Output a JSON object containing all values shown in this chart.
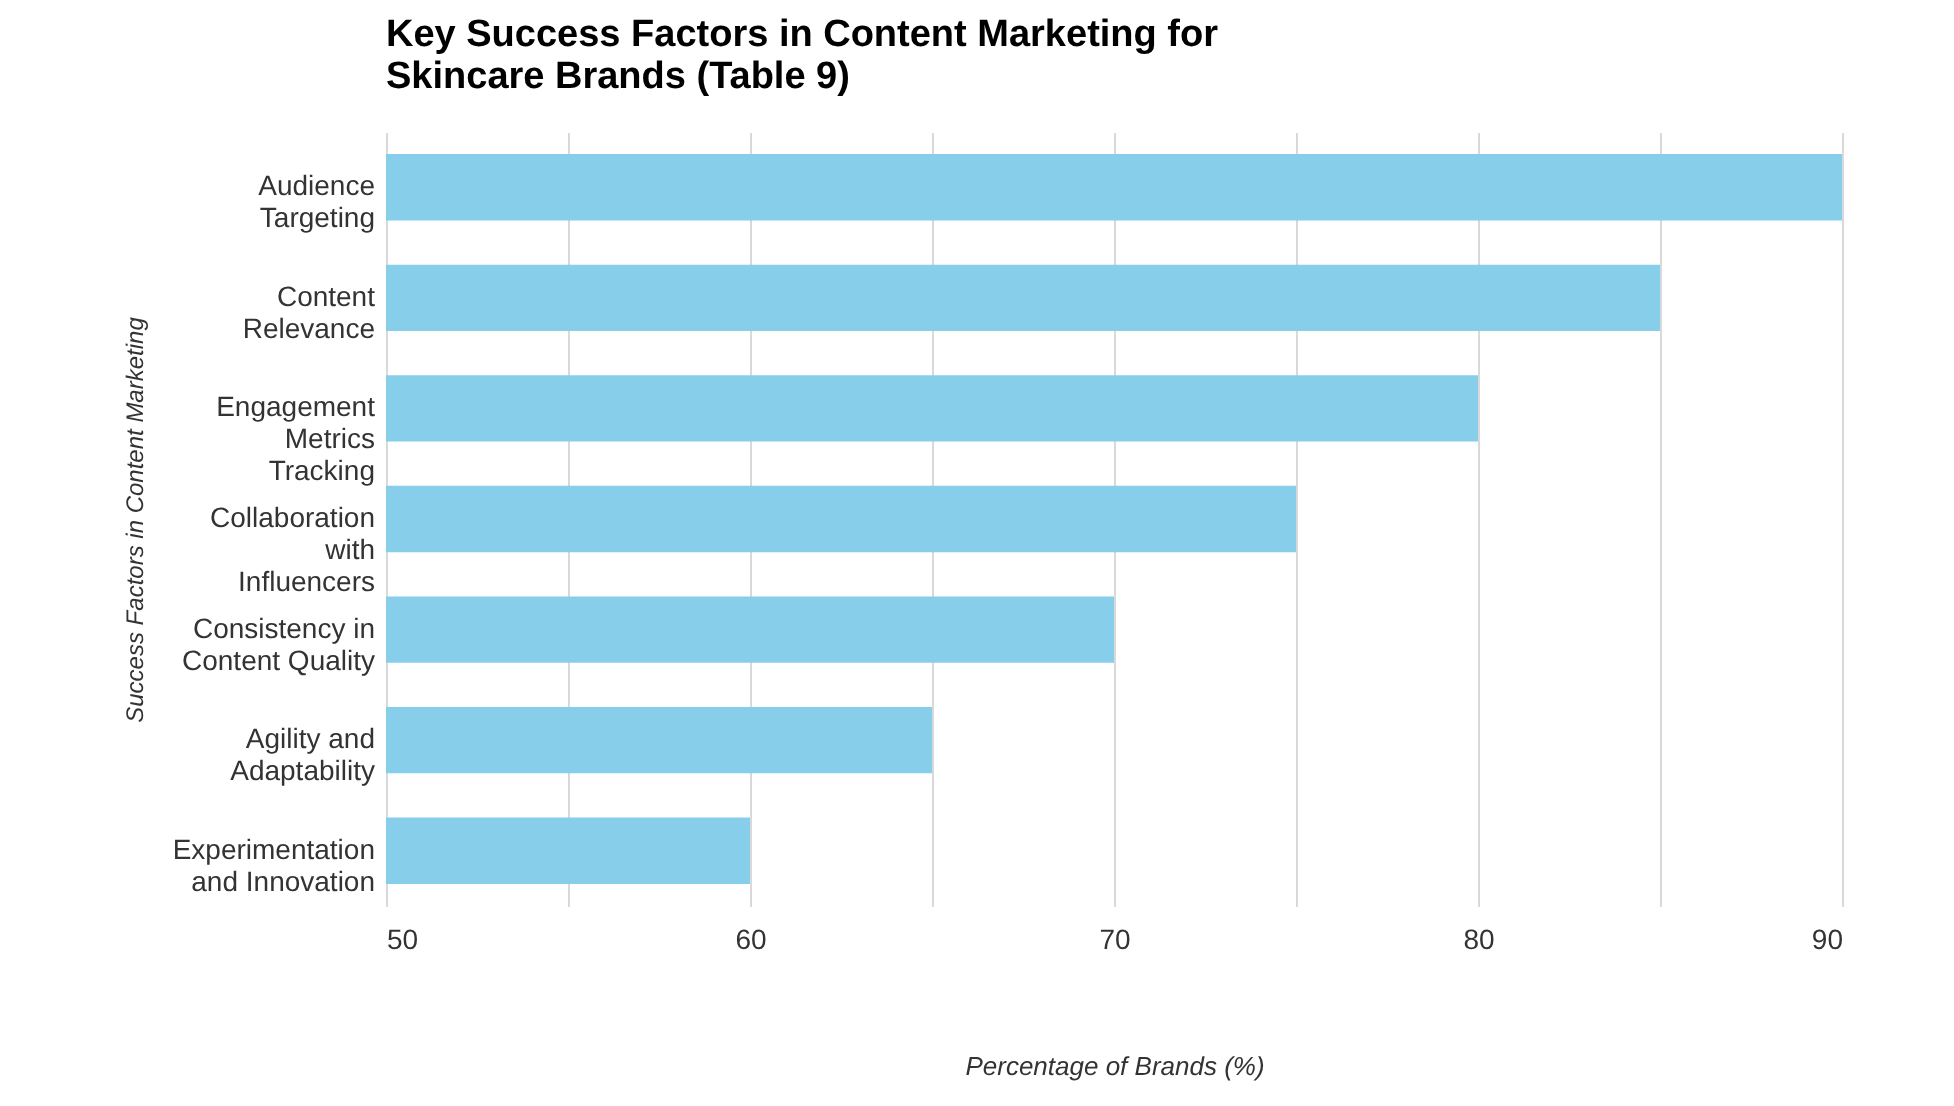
{
  "chart_data": {
    "type": "bar",
    "orientation": "horizontal",
    "title": "Key Success Factors in Content Marketing for Skincare Brands (Table 9)",
    "xlabel": "Percentage of Brands (%)",
    "ylabel": "Success Factors in Content Marketing",
    "categories": [
      "Audience Targeting",
      "Content Relevance",
      "Engagement Metrics Tracking",
      "Collaboration with Influencers",
      "Consistency in Content Quality",
      "Agility and Adaptability",
      "Experimentation and Innovation"
    ],
    "values": [
      90,
      85,
      80,
      75,
      70,
      65,
      60
    ],
    "color": "#87ceeb",
    "xlim": [
      50,
      90
    ],
    "xticks": [
      50,
      {
        "value": 55,
        "label": null
      },
      60,
      {
        "value": 65,
        "label": null
      },
      70,
      {
        "value": 75,
        "label": null
      },
      80,
      {
        "value": 85,
        "label": null
      },
      90
    ],
    "grid": "x"
  }
}
